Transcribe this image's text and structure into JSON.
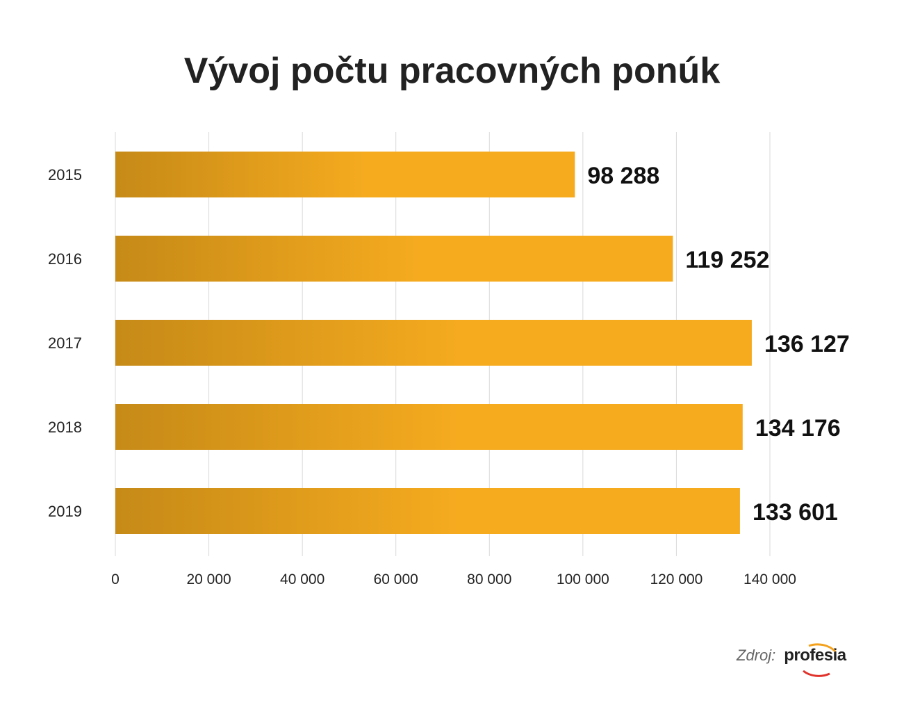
{
  "chart_data": {
    "type": "bar",
    "orientation": "horizontal",
    "title": "Vývoj počtu pracovných ponúk",
    "categories": [
      "2015",
      "2016",
      "2017",
      "2018",
      "2019"
    ],
    "values": [
      98288,
      119252,
      136127,
      134176,
      133601
    ],
    "data_labels": [
      "98 288",
      "119 252",
      "136 127",
      "134 176",
      "133 601"
    ],
    "xlim": [
      0,
      140000
    ],
    "x_ticks": [
      0,
      20000,
      40000,
      60000,
      80000,
      100000,
      120000,
      140000
    ],
    "x_tick_labels": [
      "0",
      "20 000",
      "40 000",
      "60 000",
      "80 000",
      "100 000",
      "120 000",
      "140 000"
    ],
    "grid": true,
    "colors": {
      "bar_start": "#c68a17",
      "bar_end": "#f6ab1f",
      "grid": "#d9d9d9"
    }
  },
  "source": {
    "label": "Zdroj:",
    "logo_text": "profesia"
  }
}
